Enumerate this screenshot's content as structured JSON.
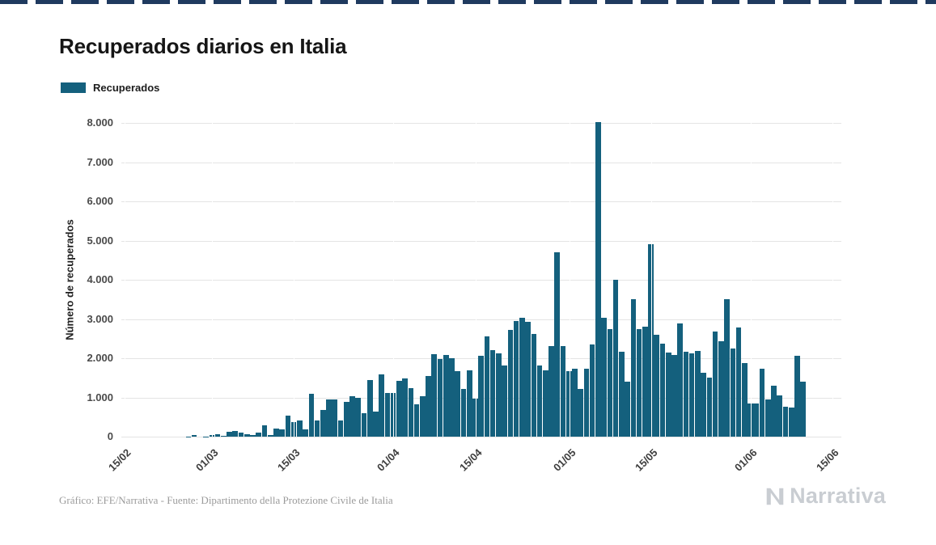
{
  "page": {
    "top_border_color": "#1f3a5f",
    "background_color": "#ffffff"
  },
  "header": {
    "title": "Recuperados diarios en Italia"
  },
  "legend": {
    "label": "Recuperados",
    "swatch_color": "#14607d"
  },
  "chart_data": {
    "type": "bar",
    "title": "Recuperados diarios en Italia",
    "series_name": "Recuperados",
    "xlabel": "",
    "ylabel": "Número de recuperados",
    "ylim": [
      0,
      8000
    ],
    "grid": true,
    "legend_position": "top-left",
    "bar_color": "#14607d",
    "x_domain_days": 123,
    "y_ticks": [
      {
        "label": "0",
        "value": 0
      },
      {
        "label": "1.000",
        "value": 1000
      },
      {
        "label": "2.000",
        "value": 2000
      },
      {
        "label": "3.000",
        "value": 3000
      },
      {
        "label": "4.000",
        "value": 4000
      },
      {
        "label": "5.000",
        "value": 5000
      },
      {
        "label": "6.000",
        "value": 6000
      },
      {
        "label": "7.000",
        "value": 7000
      },
      {
        "label": "8.000",
        "value": 8000
      }
    ],
    "x_ticks": [
      {
        "label": "15/02",
        "day": 0
      },
      {
        "label": "01/03",
        "day": 15
      },
      {
        "label": "15/03",
        "day": 29
      },
      {
        "label": "01/04",
        "day": 46
      },
      {
        "label": "15/04",
        "day": 60
      },
      {
        "label": "01/05",
        "day": 76
      },
      {
        "label": "15/05",
        "day": 90
      },
      {
        "label": "01/06",
        "day": 107
      },
      {
        "label": "15/06",
        "day": 121
      }
    ],
    "dates": [
      "15/02",
      "16/02",
      "17/02",
      "18/02",
      "19/02",
      "20/02",
      "21/02",
      "22/02",
      "23/02",
      "24/02",
      "25/02",
      "26/02",
      "27/02",
      "28/02",
      "29/02",
      "01/03",
      "02/03",
      "03/03",
      "04/03",
      "05/03",
      "06/03",
      "07/03",
      "08/03",
      "09/03",
      "10/03",
      "11/03",
      "12/03",
      "13/03",
      "14/03",
      "15/03",
      "16/03",
      "17/03",
      "18/03",
      "19/03",
      "20/03",
      "21/03",
      "22/03",
      "23/03",
      "24/03",
      "25/03",
      "26/03",
      "27/03",
      "28/03",
      "29/03",
      "30/03",
      "31/03",
      "01/04",
      "02/04",
      "03/04",
      "04/04",
      "05/04",
      "06/04",
      "07/04",
      "08/04",
      "09/04",
      "10/04",
      "11/04",
      "12/04",
      "13/04",
      "14/04",
      "15/04",
      "16/04",
      "17/04",
      "18/04",
      "19/04",
      "20/04",
      "21/04",
      "22/04",
      "23/04",
      "24/04",
      "25/04",
      "26/04",
      "27/04",
      "28/04",
      "29/04",
      "30/04",
      "01/05",
      "02/05",
      "03/05",
      "04/05",
      "05/05",
      "06/05",
      "07/05",
      "08/05",
      "09/05",
      "10/05",
      "11/05",
      "12/05",
      "13/05",
      "14/05",
      "15/05",
      "16/05",
      "17/05",
      "18/05",
      "19/05",
      "20/05",
      "21/05",
      "22/05",
      "23/05",
      "24/05",
      "25/05",
      "26/05",
      "27/05",
      "28/05",
      "29/05",
      "30/05",
      "31/05",
      "01/06",
      "02/06",
      "03/06",
      "04/06",
      "05/06",
      "06/06",
      "07/06",
      "08/06",
      "09/06",
      "10/06"
    ],
    "values": [
      0,
      0,
      0,
      0,
      0,
      0,
      0,
      1,
      1,
      0,
      1,
      2,
      42,
      1,
      4,
      33,
      66,
      11,
      116,
      138,
      109,
      66,
      33,
      102,
      280,
      41,
      213,
      181,
      527,
      369,
      414,
      192,
      1084,
      415,
      689,
      943,
      952,
      408,
      894,
      1036,
      999,
      589,
      1434,
      646,
      1590,
      1109,
      1118,
      1431,
      1480,
      1238,
      819,
      1022,
      1555,
      2099,
      1979,
      2079,
      1996,
      1677,
      1224,
      1695,
      962,
      2072,
      2563,
      2200,
      2128,
      1822,
      2723,
      2943,
      3033,
      2922,
      2622,
      1808,
      1696,
      2317,
      4693,
      2311,
      1665,
      1731,
      1225,
      1740,
      2352,
      8014,
      3031,
      2747,
      4008,
      2155,
      1401,
      3502,
      2747,
      2809,
      4917,
      2605,
      2366,
      2150,
      2075,
      2881,
      2160,
      2120,
      2194,
      1639,
      1502,
      2677,
      2443,
      3503,
      2240,
      2789,
      1874,
      848,
      846,
      1737,
      957,
      1297,
      1061,
      759,
      747,
      2062,
      1399
    ]
  },
  "footer": {
    "credit": "Gráfico: EFE/Narrativa - Fuente: Dipartimento della Protezione Civile de Italia",
    "brand": "Narrativa"
  }
}
